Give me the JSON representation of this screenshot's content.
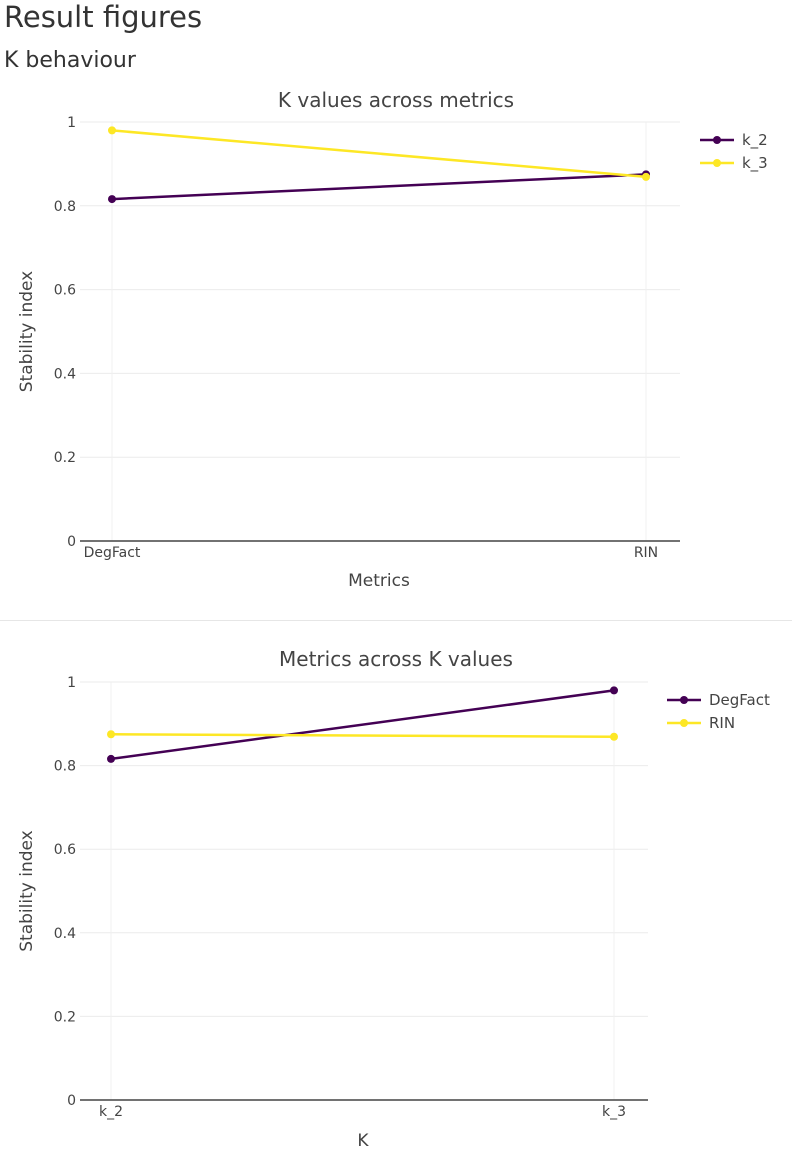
{
  "page": {
    "title": "Result figures",
    "section": "K behaviour"
  },
  "chart_data": [
    {
      "type": "line",
      "title": "K values across metrics",
      "xlabel": "Metrics",
      "ylabel": "Stability index",
      "categories": [
        "DegFact",
        "RIN"
      ],
      "ylim": [
        0,
        1
      ],
      "yticks": [
        0,
        0.2,
        0.4,
        0.6,
        0.8,
        1
      ],
      "ytick_labels": [
        "0",
        "0.2",
        "0.4",
        "0.6",
        "0.8",
        "1"
      ],
      "grid": true,
      "legend_position": "top-right",
      "series": [
        {
          "name": "k_2",
          "values": [
            0.816,
            0.875
          ],
          "color": "#440154"
        },
        {
          "name": "k_3",
          "values": [
            0.98,
            0.869
          ],
          "color": "#fde725"
        }
      ]
    },
    {
      "type": "line",
      "title": "Metrics across K values",
      "xlabel": "K",
      "ylabel": "Stability index",
      "categories": [
        "k_2",
        "k_3"
      ],
      "ylim": [
        0,
        1
      ],
      "yticks": [
        0,
        0.2,
        0.4,
        0.6,
        0.8,
        1
      ],
      "ytick_labels": [
        "0",
        "0.2",
        "0.4",
        "0.6",
        "0.8",
        "1"
      ],
      "grid": true,
      "legend_position": "top-right",
      "series": [
        {
          "name": "DegFact",
          "values": [
            0.816,
            0.98
          ],
          "color": "#440154"
        },
        {
          "name": "RIN",
          "values": [
            0.875,
            0.869
          ],
          "color": "#fde725"
        }
      ]
    }
  ]
}
